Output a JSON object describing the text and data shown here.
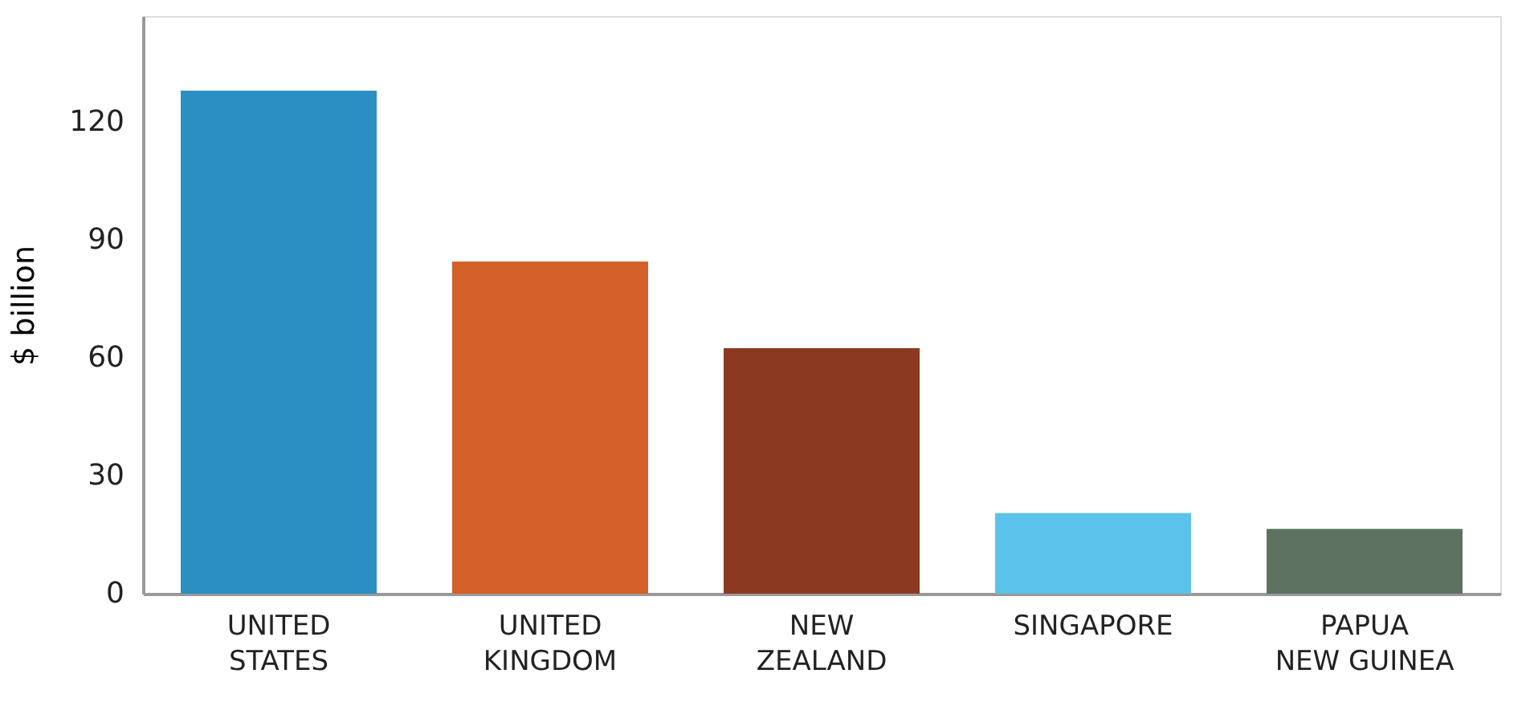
{
  "chart_data": {
    "type": "bar",
    "ylabel": "$ billion",
    "categories": [
      "UNITED\nSTATES",
      "UNITED\nKINGDOM",
      "NEW\nZEALAND",
      "SINGAPORE",
      "PAPUA\nNEW GUINEA"
    ],
    "values": [
      128,
      84.5,
      62.5,
      20.5,
      16.5
    ],
    "colors": [
      "#2b8fc4",
      "#d4612a",
      "#8b3a21",
      "#5bc3ea",
      "#5e7262"
    ],
    "ylim": [
      0,
      147
    ],
    "yticks": [
      0,
      30,
      60,
      90,
      120
    ],
    "grid": false
  }
}
